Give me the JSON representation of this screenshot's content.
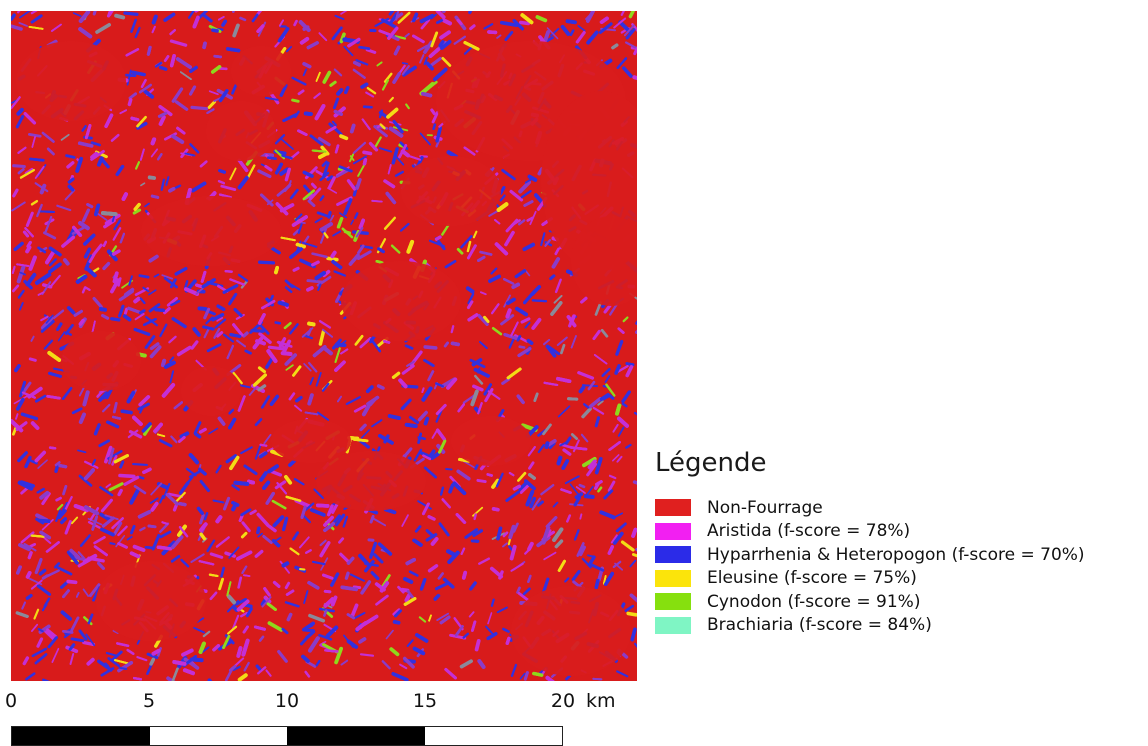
{
  "legend": {
    "title": "Légende",
    "items": [
      {
        "label": "Non-Fourrage",
        "color": "#e0201f"
      },
      {
        "label": "Aristida (f-score = 78%)",
        "color": "#f21ff2"
      },
      {
        "label": "Hyparrhenia & Heteropogon (f-score = 70%)",
        "color": "#2b2be8"
      },
      {
        "label": "Eleusine (f-score = 75%)",
        "color": "#fbe40b"
      },
      {
        "label": "Cynodon (f-score = 91%)",
        "color": "#86e00e"
      },
      {
        "label": "Brachiaria (f-score = 84%)",
        "color": "#7ff5c4"
      }
    ]
  },
  "scale": {
    "ticks": [
      "0",
      "5",
      "10",
      "15",
      "20"
    ],
    "unit": "km",
    "segment_colors": [
      "#000000",
      "#ffffff",
      "#000000",
      "#ffffff"
    ]
  },
  "map": {
    "base_color": "#d81b1b",
    "texture_colors": {
      "red": "#d91c1c",
      "magenta": "#c42fd6",
      "blue": "#3131e0",
      "purple": "#8a3cc8",
      "yellow": "#f3dc16",
      "green": "#8fd81c",
      "gray": "#8a8a9a"
    }
  }
}
